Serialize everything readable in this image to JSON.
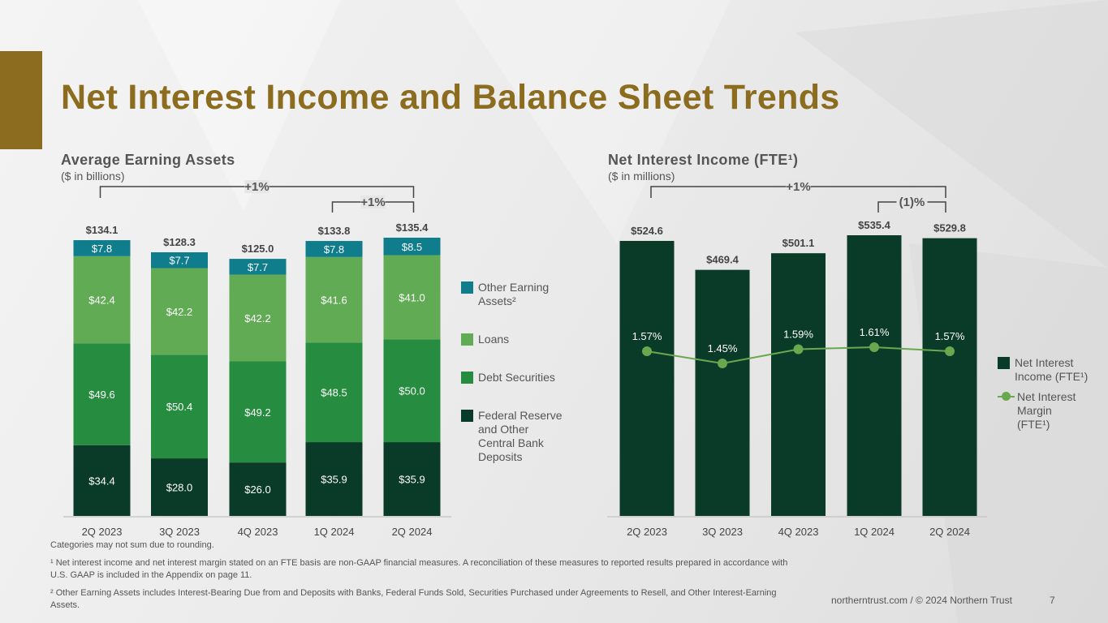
{
  "title": "Net Interest Income and Balance Sheet Trends",
  "colors": {
    "accent": "#8c6d1f",
    "other_earning_assets": "#0f7d8c",
    "loans": "#62ab55",
    "debt_securities": "#268c3f",
    "fed_reserve_deposits": "#0a3a28",
    "nii_bar": "#0a3a28",
    "nim_line": "#6aa84f"
  },
  "left_chart": {
    "title": "Average Earning Assets",
    "subtitle": "($ in billions)",
    "legend": [
      {
        "key": "other_earning_assets",
        "label_lines": [
          "Other Earning",
          "Assets²"
        ]
      },
      {
        "key": "loans",
        "label_lines": [
          "Loans"
        ]
      },
      {
        "key": "debt_securities",
        "label_lines": [
          "Debt Securities"
        ]
      },
      {
        "key": "fed_reserve_deposits",
        "label_lines": [
          "Federal Reserve",
          "and Other",
          "Central Bank",
          "Deposits"
        ]
      }
    ],
    "brackets": [
      {
        "label": "+1%",
        "from": 0,
        "to": 4
      },
      {
        "label": "+1%",
        "from": 3,
        "to": 4
      }
    ]
  },
  "right_chart": {
    "title": "Net Interest Income (FTE¹)",
    "subtitle": "($ in millions)",
    "legend": [
      {
        "key": "nii_bar",
        "label_lines": [
          "Net Interest",
          "Income (FTE¹)"
        ]
      },
      {
        "key": "nim_line",
        "label_lines": [
          "Net Interest",
          "Margin",
          "(FTE¹)"
        ]
      }
    ],
    "brackets": [
      {
        "label": "+1%",
        "from": 0,
        "to": 4
      },
      {
        "label": "(1)%",
        "from": 3,
        "to": 4
      }
    ]
  },
  "chart_data": [
    {
      "type": "bar",
      "stacked": true,
      "title": "Average Earning Assets",
      "ylabel": "$ in billions",
      "categories": [
        "2Q 2023",
        "3Q 2023",
        "4Q 2023",
        "1Q 2024",
        "2Q 2024"
      ],
      "series": [
        {
          "name": "Federal Reserve and Other Central Bank Deposits",
          "key": "fed_reserve_deposits",
          "values": [
            34.4,
            28.0,
            26.0,
            35.9,
            35.9
          ],
          "labels": [
            "$34.4",
            "$28.0",
            "$26.0",
            "$35.9",
            "$35.9"
          ]
        },
        {
          "name": "Debt Securities",
          "key": "debt_securities",
          "values": [
            49.6,
            50.4,
            49.2,
            48.5,
            50.0
          ],
          "labels": [
            "$49.6",
            "$50.4",
            "$49.2",
            "$48.5",
            "$50.0"
          ]
        },
        {
          "name": "Loans",
          "key": "loans",
          "values": [
            42.4,
            42.2,
            42.2,
            41.6,
            41.0
          ],
          "labels": [
            "$42.4",
            "$42.2",
            "$42.2",
            "$41.6",
            "$41.0"
          ]
        },
        {
          "name": "Other Earning Assets²",
          "key": "other_earning_assets",
          "values": [
            7.8,
            7.7,
            7.7,
            7.8,
            8.5
          ],
          "labels": [
            "$7.8",
            "$7.7",
            "$7.7",
            "$7.8",
            "$8.5"
          ]
        }
      ],
      "totals": [
        134.1,
        128.3,
        125.0,
        133.8,
        135.4
      ],
      "total_labels": [
        "$134.1",
        "$128.3",
        "$125.0",
        "$133.8",
        "$135.4"
      ],
      "ylim": [
        0,
        135.4
      ]
    },
    {
      "type": "bar",
      "title": "Net Interest Income (FTE¹)",
      "ylabel": "$ in millions",
      "categories": [
        "2Q 2023",
        "3Q 2023",
        "4Q 2023",
        "1Q 2024",
        "2Q 2024"
      ],
      "series": [
        {
          "name": "Net Interest Income (FTE¹)",
          "key": "nii_bar",
          "values": [
            524.6,
            469.4,
            501.1,
            535.4,
            529.8
          ],
          "labels": [
            "$524.6",
            "$469.4",
            "$501.1",
            "$535.4",
            "$529.8"
          ]
        }
      ],
      "line_series": {
        "name": "Net Interest Margin (FTE¹)",
        "key": "nim_line",
        "values": [
          1.57,
          1.45,
          1.59,
          1.61,
          1.57
        ],
        "labels": [
          "1.57%",
          "1.45%",
          "1.59%",
          "1.61%",
          "1.57%"
        ]
      },
      "ylim": [
        0,
        535.4
      ]
    }
  ],
  "footnotes": {
    "rounding": "Categories may not sum due to rounding.",
    "note1_line1": "¹ Net interest income and net interest margin stated on an FTE basis are non-GAAP financial measures. A reconciliation of these measures to reported results prepared in accordance with",
    "note1_line2": "U.S. GAAP is included in the Appendix on page 11.",
    "note2_line1": "² Other Earning Assets includes Interest-Bearing Due from and Deposits with Banks, Federal Funds Sold, Securities Purchased under Agreements to Resell, and Other Interest-Earning",
    "note2_line2": "Assets."
  },
  "footer": {
    "source": "northerntrust.com / © 2024 Northern Trust",
    "page_number": "7"
  }
}
